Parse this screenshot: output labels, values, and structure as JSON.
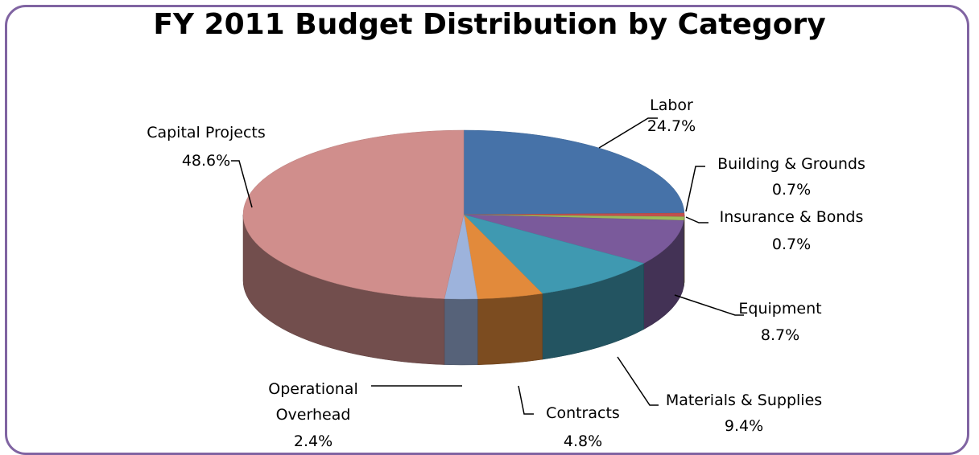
{
  "chart_data": {
    "type": "pie",
    "title": "FY 2011 Budget Distribution by Category",
    "three_d": true,
    "slices": [
      {
        "name": "Labor",
        "value": 24.7,
        "label": "24.7%",
        "color": "#4672a8"
      },
      {
        "name": "Building & Grounds",
        "value": 0.7,
        "label": "0.7%",
        "color": "#c0504d"
      },
      {
        "name": "Insurance & Bonds",
        "value": 0.7,
        "label": "0.7%",
        "color": "#9bbb59"
      },
      {
        "name": "Equipment",
        "value": 8.7,
        "label": "8.7%",
        "color": "#7a5a9b"
      },
      {
        "name": "Materials & Supplies",
        "value": 9.4,
        "label": "9.4%",
        "color": "#3f99b1"
      },
      {
        "name": "Contracts",
        "value": 4.8,
        "label": "4.8%",
        "color": "#e28a3b"
      },
      {
        "name": "Operational Overhead",
        "value": 2.4,
        "label": "2.4%",
        "color": "#9db3dc"
      },
      {
        "name": "Capital Projects",
        "value": 48.6,
        "label": "48.6%",
        "color": "#d08e8c"
      }
    ]
  }
}
